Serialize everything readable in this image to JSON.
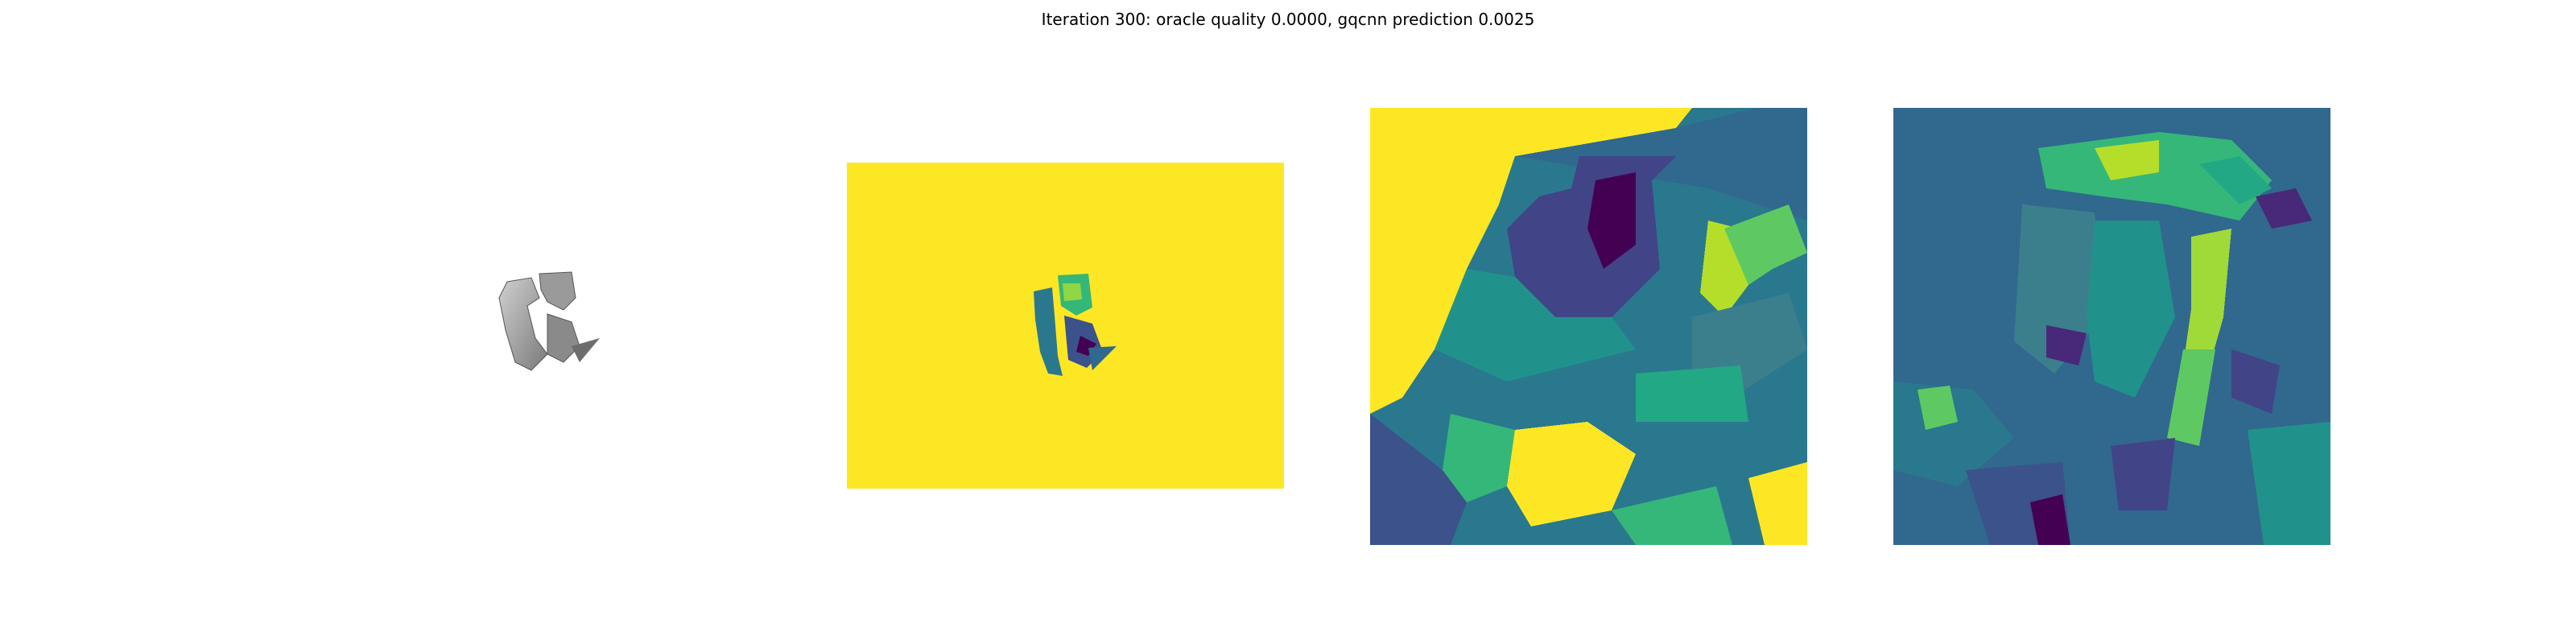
{
  "figure": {
    "title": "Iteration 300: oracle quality 0.0000, gqcnn prediction 0.0025"
  },
  "panels": [
    {
      "id": "render",
      "kind": "grayscale-render-of-object"
    },
    {
      "id": "depth",
      "kind": "depth-image",
      "colormap": "viridis"
    },
    {
      "id": "crop",
      "kind": "depth-crop-heatmap",
      "colormap": "viridis"
    },
    {
      "id": "grad",
      "kind": "gradient-heatmap",
      "colormap": "viridis"
    }
  ],
  "colors": {
    "yellow": "#fde725",
    "teal": "#3b7f8d",
    "green": "#35b779",
    "lime": "#b5de2b",
    "purple": "#440154",
    "indigo": "#3b528b"
  }
}
